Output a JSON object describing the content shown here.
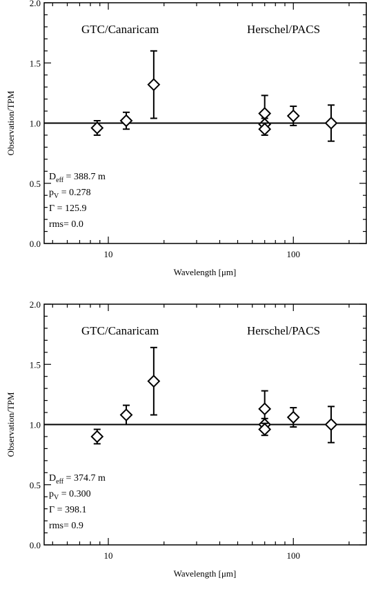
{
  "chart_data": [
    {
      "type": "scatter",
      "xscale": "log",
      "xlim": [
        4.5,
        250
      ],
      "ylim": [
        0.0,
        2.0
      ],
      "xlabel": "Wavelength [μm]",
      "ylabel": "Observation/TPM",
      "xticks": [
        10,
        100
      ],
      "yticks": [
        "0.0",
        "0.5",
        "1.0",
        "1.5",
        "2.0"
      ],
      "reference_line": 1.0,
      "labels": {
        "left": "GTC/Canaricam",
        "right": "Herschel/PACS"
      },
      "params": [
        {
          "sym": "D",
          "sub": "eff",
          "rest": " = 388.7 m"
        },
        {
          "sym": "p",
          "sub": "V",
          "rest": " = 0.278"
        },
        {
          "sym": "Γ",
          "sub": "",
          "rest": " = 125.9"
        },
        {
          "sym": "rms",
          "sub": "",
          "rest": "= 0.0"
        }
      ],
      "points": [
        {
          "x": 8.7,
          "y": 0.96,
          "err": 0.06
        },
        {
          "x": 12.5,
          "y": 1.02,
          "err": 0.07
        },
        {
          "x": 17.6,
          "y": 1.32,
          "err": 0.28
        },
        {
          "x": 70,
          "y": 1.08,
          "err": 0.15
        },
        {
          "x": 70,
          "y": 0.99,
          "err": 0.05
        },
        {
          "x": 70,
          "y": 0.95,
          "err": 0.05
        },
        {
          "x": 100,
          "y": 1.06,
          "err": 0.08
        },
        {
          "x": 160,
          "y": 1.0,
          "err": 0.15
        }
      ]
    },
    {
      "type": "scatter",
      "xscale": "log",
      "xlim": [
        4.5,
        250
      ],
      "ylim": [
        0.0,
        2.0
      ],
      "xlabel": "Wavelength [μm]",
      "ylabel": "Observation/TPM",
      "xticks": [
        10,
        100
      ],
      "yticks": [
        "0.0",
        "0.5",
        "1.0",
        "1.5",
        "2.0"
      ],
      "reference_line": 1.0,
      "labels": {
        "left": "GTC/Canaricam",
        "right": "Herschel/PACS"
      },
      "params": [
        {
          "sym": "D",
          "sub": "eff",
          "rest": " = 374.7 m"
        },
        {
          "sym": "p",
          "sub": "V",
          "rest": " = 0.300"
        },
        {
          "sym": "Γ",
          "sub": "",
          "rest": " = 398.1"
        },
        {
          "sym": "rms",
          "sub": "",
          "rest": "= 0.9"
        }
      ],
      "points": [
        {
          "x": 8.7,
          "y": 0.9,
          "err": 0.06
        },
        {
          "x": 12.5,
          "y": 1.08,
          "err": 0.08
        },
        {
          "x": 17.6,
          "y": 1.36,
          "err": 0.28
        },
        {
          "x": 70,
          "y": 1.13,
          "err": 0.15
        },
        {
          "x": 70,
          "y": 1.0,
          "err": 0.05
        },
        {
          "x": 70,
          "y": 0.96,
          "err": 0.05
        },
        {
          "x": 100,
          "y": 1.06,
          "err": 0.08
        },
        {
          "x": 160,
          "y": 1.0,
          "err": 0.15
        }
      ]
    }
  ]
}
